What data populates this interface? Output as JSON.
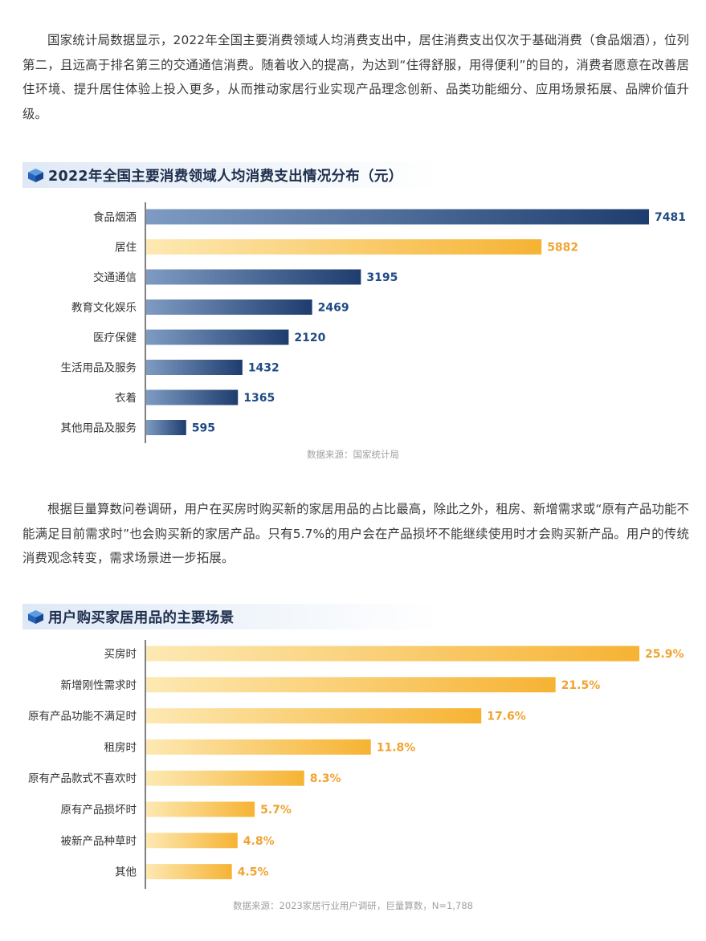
{
  "paragraph1": "国家统计局数据显示，2022年全国主要消费领域人均消费支出中，居住消费支出仅次于基础消费（食品烟酒），位列第二，且远高于排名第三的交通通信消费。随着收入的提高，为达到“住得舒服，用得便利”的目的，消费者愿意在改善居住环境、提升居住体验上投入更多，从而推动家居行业实现产品理念创新、品类功能细分、应用场景拓展、品牌价值升级。",
  "paragraph2": "根据巨量算数问卷调研，用户在买房时购买新的家居用品的占比最高，除此之外，租房、新增需求或“原有产品功能不能满足目前需求时”也会购买新的家居产品。只有5.7%的用户会在产品损坏不能继续使用时才会购买新产品。用户的传统消费观念转变，需求场景进一步拓展。",
  "colors": {
    "navy_dark": "#1e3d6e",
    "navy_light": "#7e9bc2",
    "gold_dark": "#f6b333",
    "gold_light": "#fde9b3",
    "navy_label": "#1f4a85",
    "orange_label": "#f0a330"
  },
  "chart_data": [
    {
      "type": "bar",
      "orientation": "horizontal",
      "title": "2022年全国主要消费领域人均消费支出情况分布（元）",
      "categories": [
        "食品烟酒",
        "居住",
        "交通通信",
        "教育文化娱乐",
        "医疗保健",
        "生活用品及服务",
        "衣着",
        "其他用品及服务"
      ],
      "values": [
        7481,
        5882,
        3195,
        2469,
        2120,
        1432,
        1365,
        595
      ],
      "value_labels": [
        "7481",
        "5882",
        "3195",
        "2469",
        "2120",
        "1432",
        "1365",
        "595"
      ],
      "highlight_index": 1,
      "xlim": [
        0,
        7481
      ],
      "grid": false,
      "source": "数据来源：国家统计局"
    },
    {
      "type": "bar",
      "orientation": "horizontal",
      "title": "用户购买家居用品的主要场景",
      "categories": [
        "买房时",
        "新增刚性需求时",
        "原有产品功能不满足时",
        "租房时",
        "原有产品款式不喜欢时",
        "原有产品损坏时",
        "被新产品种草时",
        "其他"
      ],
      "values": [
        25.9,
        21.5,
        17.6,
        11.8,
        8.3,
        5.7,
        4.8,
        4.5
      ],
      "value_labels": [
        "25.9%",
        "21.5%",
        "17.6%",
        "11.8%",
        "8.3%",
        "5.7%",
        "4.8%",
        "4.5%"
      ],
      "xlim": [
        0,
        25.9
      ],
      "grid": false,
      "source": "数据来源：2023家居行业用户调研，巨量算数，N=1,788"
    }
  ]
}
